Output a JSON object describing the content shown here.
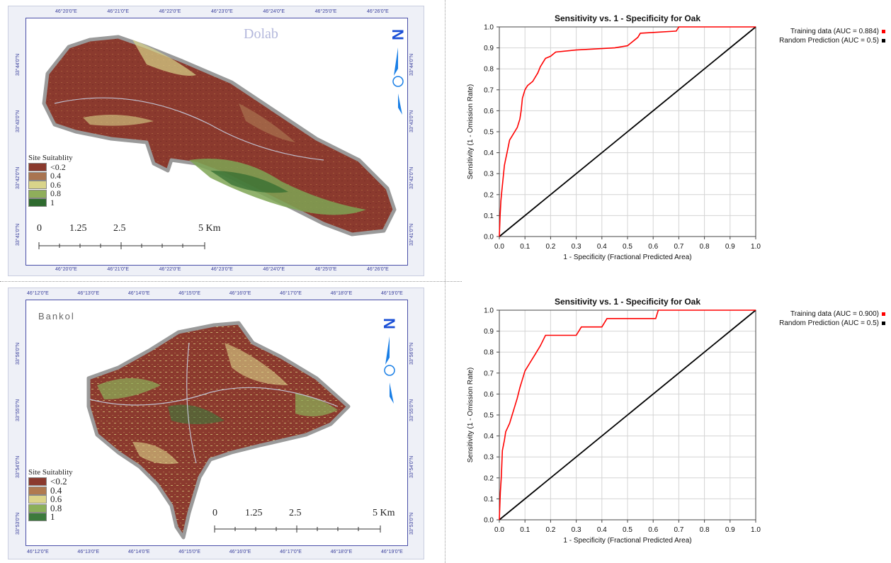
{
  "maps": [
    {
      "title": "Dolab",
      "top_ticks": [
        "46°20'0\"E",
        "46°21'0\"E",
        "46°22'0\"E",
        "46°23'0\"E",
        "46°24'0\"E",
        "46°25'0\"E",
        "46°26'0\"E"
      ],
      "bottom_ticks": [
        "46°20'0\"E",
        "46°21'0\"E",
        "46°22'0\"E",
        "46°23'0\"E",
        "46°24'0\"E",
        "46°25'0\"E",
        "46°26'0\"E"
      ],
      "left_ticks": [
        "33°44'0\"N",
        "33°43'0\"N",
        "33°42'0\"N",
        "33°41'0\"N"
      ],
      "right_ticks": [
        "33°44'0\"N",
        "33°43'0\"N",
        "33°42'0\"N",
        "33°41'0\"N"
      ],
      "legend_title": "Site Suitablity",
      "legend": [
        {
          "label": "<0.2",
          "color": "#8b3a2e"
        },
        {
          "label": "0.4",
          "color": "#a97450"
        },
        {
          "label": "0.6",
          "color": "#d9d48a"
        },
        {
          "label": "0.8",
          "color": "#8fae5a"
        },
        {
          "label": "1",
          "color": "#2f6b2f"
        }
      ],
      "scale_labels": [
        "0",
        "1.25",
        "2.5",
        "5 Km"
      ],
      "north": "N"
    },
    {
      "title": "Bankol",
      "top_ticks": [
        "46°12'0\"E",
        "46°13'0\"E",
        "46°14'0\"E",
        "46°15'0\"E",
        "46°16'0\"E",
        "46°17'0\"E",
        "46°18'0\"E",
        "46°19'0\"E"
      ],
      "bottom_ticks": [
        "46°12'0\"E",
        "46°13'0\"E",
        "46°14'0\"E",
        "46°15'0\"E",
        "46°16'0\"E",
        "46°17'0\"E",
        "46°18'0\"E",
        "46°19'0\"E"
      ],
      "left_ticks": [
        "33°56'0\"N",
        "33°55'0\"N",
        "33°54'0\"N",
        "33°53'0\"N"
      ],
      "right_ticks": [
        "33°56'0\"N",
        "33°55'0\"N",
        "33°54'0\"N",
        "33°53'0\"N"
      ],
      "legend_title": "Site Suitablity",
      "legend": [
        {
          "label": "<0.2",
          "color": "#8b3a2e"
        },
        {
          "label": "0.4",
          "color": "#b07a50"
        },
        {
          "label": "0.6",
          "color": "#dcd48a"
        },
        {
          "label": "0.8",
          "color": "#8cb05a"
        },
        {
          "label": "1",
          "color": "#3c7a3c"
        }
      ],
      "scale_labels": [
        "0",
        "1.25",
        "2.5",
        "5 Km"
      ],
      "north": "N"
    }
  ],
  "chart_data": [
    {
      "type": "line",
      "title": "Sensitivity vs. 1 - Specificity for Oak",
      "xlabel": "1 - Specificity  (Fractional Predicted Area)",
      "ylabel": "Sensitivity  (1 - Omission Rate)",
      "xlim": [
        0,
        1
      ],
      "ylim": [
        0,
        1
      ],
      "xticks": [
        "0.0",
        "0.1",
        "0.2",
        "0.3",
        "0.4",
        "0.5",
        "0.6",
        "0.7",
        "0.8",
        "0.9",
        "1.0"
      ],
      "yticks": [
        "0.0",
        "0.1",
        "0.2",
        "0.3",
        "0.4",
        "0.5",
        "0.6",
        "0.7",
        "0.8",
        "0.9",
        "1.0"
      ],
      "grid": true,
      "legend_position": "top-right, outside",
      "series": [
        {
          "name": "Training data (AUC = 0.884)",
          "color": "#ff0000",
          "points": [
            [
              0,
              0
            ],
            [
              0.003,
              0.1
            ],
            [
              0.006,
              0.17
            ],
            [
              0.01,
              0.22
            ],
            [
              0.015,
              0.28
            ],
            [
              0.02,
              0.34
            ],
            [
              0.025,
              0.37
            ],
            [
              0.03,
              0.4
            ],
            [
              0.035,
              0.43
            ],
            [
              0.04,
              0.46
            ],
            [
              0.05,
              0.48
            ],
            [
              0.06,
              0.5
            ],
            [
              0.07,
              0.52
            ],
            [
              0.08,
              0.56
            ],
            [
              0.085,
              0.6
            ],
            [
              0.09,
              0.66
            ],
            [
              0.1,
              0.7
            ],
            [
              0.11,
              0.72
            ],
            [
              0.13,
              0.74
            ],
            [
              0.14,
              0.76
            ],
            [
              0.15,
              0.78
            ],
            [
              0.16,
              0.81
            ],
            [
              0.17,
              0.83
            ],
            [
              0.18,
              0.85
            ],
            [
              0.2,
              0.86
            ],
            [
              0.22,
              0.88
            ],
            [
              0.3,
              0.89
            ],
            [
              0.45,
              0.9
            ],
            [
              0.5,
              0.91
            ],
            [
              0.52,
              0.93
            ],
            [
              0.54,
              0.95
            ],
            [
              0.55,
              0.97
            ],
            [
              0.69,
              0.98
            ],
            [
              0.7,
              1.0
            ],
            [
              1.0,
              1.0
            ]
          ]
        },
        {
          "name": "Random Prediction (AUC = 0.5)",
          "color": "#000000",
          "points": [
            [
              0,
              0
            ],
            [
              1,
              1
            ]
          ]
        }
      ]
    },
    {
      "type": "line",
      "title": "Sensitivity vs. 1 - Specificity for Oak",
      "xlabel": "1 - Specificity  (Fractional Predicted Area)",
      "ylabel": "Sensitivity  (1 - Omission Rate)",
      "xlim": [
        0,
        1
      ],
      "ylim": [
        0,
        1
      ],
      "xticks": [
        "0.0",
        "0.1",
        "0.2",
        "0.3",
        "0.4",
        "0.5",
        "0.6",
        "0.7",
        "0.8",
        "0.9",
        "1.0"
      ],
      "yticks": [
        "0.0",
        "0.1",
        "0.2",
        "0.3",
        "0.4",
        "0.5",
        "0.6",
        "0.7",
        "0.8",
        "0.9",
        "1.0"
      ],
      "grid": true,
      "legend_position": "top-right, outside",
      "series": [
        {
          "name": "Training data (AUC = 0.900)",
          "color": "#ff0000",
          "points": [
            [
              0,
              0
            ],
            [
              0.004,
              0.13
            ],
            [
              0.008,
              0.21
            ],
            [
              0.012,
              0.33
            ],
            [
              0.02,
              0.38
            ],
            [
              0.025,
              0.42
            ],
            [
              0.04,
              0.46
            ],
            [
              0.05,
              0.5
            ],
            [
              0.06,
              0.54
            ],
            [
              0.07,
              0.58
            ],
            [
              0.08,
              0.63
            ],
            [
              0.09,
              0.67
            ],
            [
              0.1,
              0.71
            ],
            [
              0.12,
              0.75
            ],
            [
              0.14,
              0.79
            ],
            [
              0.16,
              0.83
            ],
            [
              0.18,
              0.88
            ],
            [
              0.3,
              0.88
            ],
            [
              0.32,
              0.92
            ],
            [
              0.4,
              0.92
            ],
            [
              0.42,
              0.96
            ],
            [
              0.61,
              0.96
            ],
            [
              0.62,
              1.0
            ],
            [
              1.0,
              1.0
            ]
          ]
        },
        {
          "name": "Random Prediction (AUC = 0.5)",
          "color": "#000000",
          "points": [
            [
              0,
              0
            ],
            [
              1,
              1
            ]
          ]
        }
      ]
    }
  ]
}
